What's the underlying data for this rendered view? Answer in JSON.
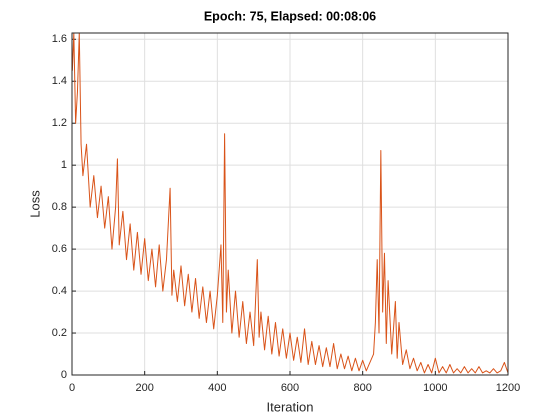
{
  "chart_data": {
    "type": "line",
    "title": "Epoch: 75, Elapsed: 00:08:06",
    "xlabel": "Iteration",
    "ylabel": "Loss",
    "x": [
      1,
      5,
      10,
      15,
      20,
      25,
      30,
      40,
      50,
      60,
      70,
      80,
      90,
      100,
      110,
      120,
      125,
      130,
      140,
      150,
      160,
      170,
      180,
      190,
      200,
      210,
      220,
      230,
      240,
      250,
      260,
      270,
      275,
      280,
      290,
      300,
      310,
      320,
      330,
      340,
      350,
      360,
      370,
      380,
      390,
      400,
      410,
      415,
      420,
      425,
      430,
      440,
      450,
      460,
      470,
      480,
      490,
      500,
      510,
      515,
      520,
      530,
      540,
      550,
      560,
      570,
      580,
      590,
      600,
      610,
      620,
      630,
      640,
      650,
      660,
      670,
      680,
      690,
      700,
      710,
      720,
      730,
      740,
      750,
      760,
      770,
      780,
      790,
      800,
      810,
      820,
      830,
      835,
      840,
      845,
      850,
      855,
      860,
      865,
      870,
      880,
      890,
      895,
      900,
      910,
      920,
      930,
      940,
      950,
      960,
      970,
      980,
      990,
      1000,
      1010,
      1020,
      1030,
      1040,
      1050,
      1060,
      1070,
      1080,
      1090,
      1100,
      1110,
      1120,
      1130,
      1140,
      1150,
      1160,
      1170,
      1180,
      1190,
      1200
    ],
    "series": [
      {
        "name": "Loss",
        "color": "#d95319",
        "values": [
          1.45,
          1.63,
          1.2,
          1.35,
          1.63,
          1.1,
          0.95,
          1.1,
          0.8,
          0.95,
          0.75,
          0.9,
          0.7,
          0.85,
          0.6,
          0.8,
          1.03,
          0.62,
          0.78,
          0.55,
          0.72,
          0.5,
          0.68,
          0.48,
          0.65,
          0.45,
          0.6,
          0.42,
          0.62,
          0.4,
          0.55,
          0.89,
          0.38,
          0.5,
          0.35,
          0.52,
          0.33,
          0.48,
          0.3,
          0.46,
          0.27,
          0.42,
          0.25,
          0.4,
          0.22,
          0.38,
          0.62,
          0.25,
          1.15,
          0.3,
          0.5,
          0.2,
          0.4,
          0.18,
          0.35,
          0.15,
          0.3,
          0.14,
          0.55,
          0.18,
          0.3,
          0.12,
          0.28,
          0.1,
          0.25,
          0.09,
          0.22,
          0.08,
          0.2,
          0.07,
          0.18,
          0.06,
          0.22,
          0.05,
          0.16,
          0.05,
          0.14,
          0.04,
          0.13,
          0.04,
          0.15,
          0.03,
          0.1,
          0.03,
          0.09,
          0.02,
          0.08,
          0.02,
          0.07,
          0.02,
          0.06,
          0.1,
          0.25,
          0.55,
          0.2,
          1.07,
          0.3,
          0.58,
          0.15,
          0.45,
          0.1,
          0.35,
          0.08,
          0.25,
          0.05,
          0.12,
          0.03,
          0.08,
          0.02,
          0.06,
          0.01,
          0.05,
          0.01,
          0.08,
          0.01,
          0.04,
          0.01,
          0.05,
          0.01,
          0.03,
          0.01,
          0.04,
          0.01,
          0.03,
          0.01,
          0.04,
          0.01,
          0.02,
          0.01,
          0.03,
          0.01,
          0.02,
          0.06,
          0.01
        ]
      }
    ],
    "xlim": [
      0,
      1200
    ],
    "xticks": [
      0,
      200,
      400,
      600,
      800,
      1000,
      1200
    ],
    "ylim": [
      0,
      1.63
    ],
    "yticks": [
      0,
      0.2,
      0.4,
      0.6,
      0.8,
      1,
      1.2,
      1.4,
      1.6
    ],
    "grid": true
  }
}
